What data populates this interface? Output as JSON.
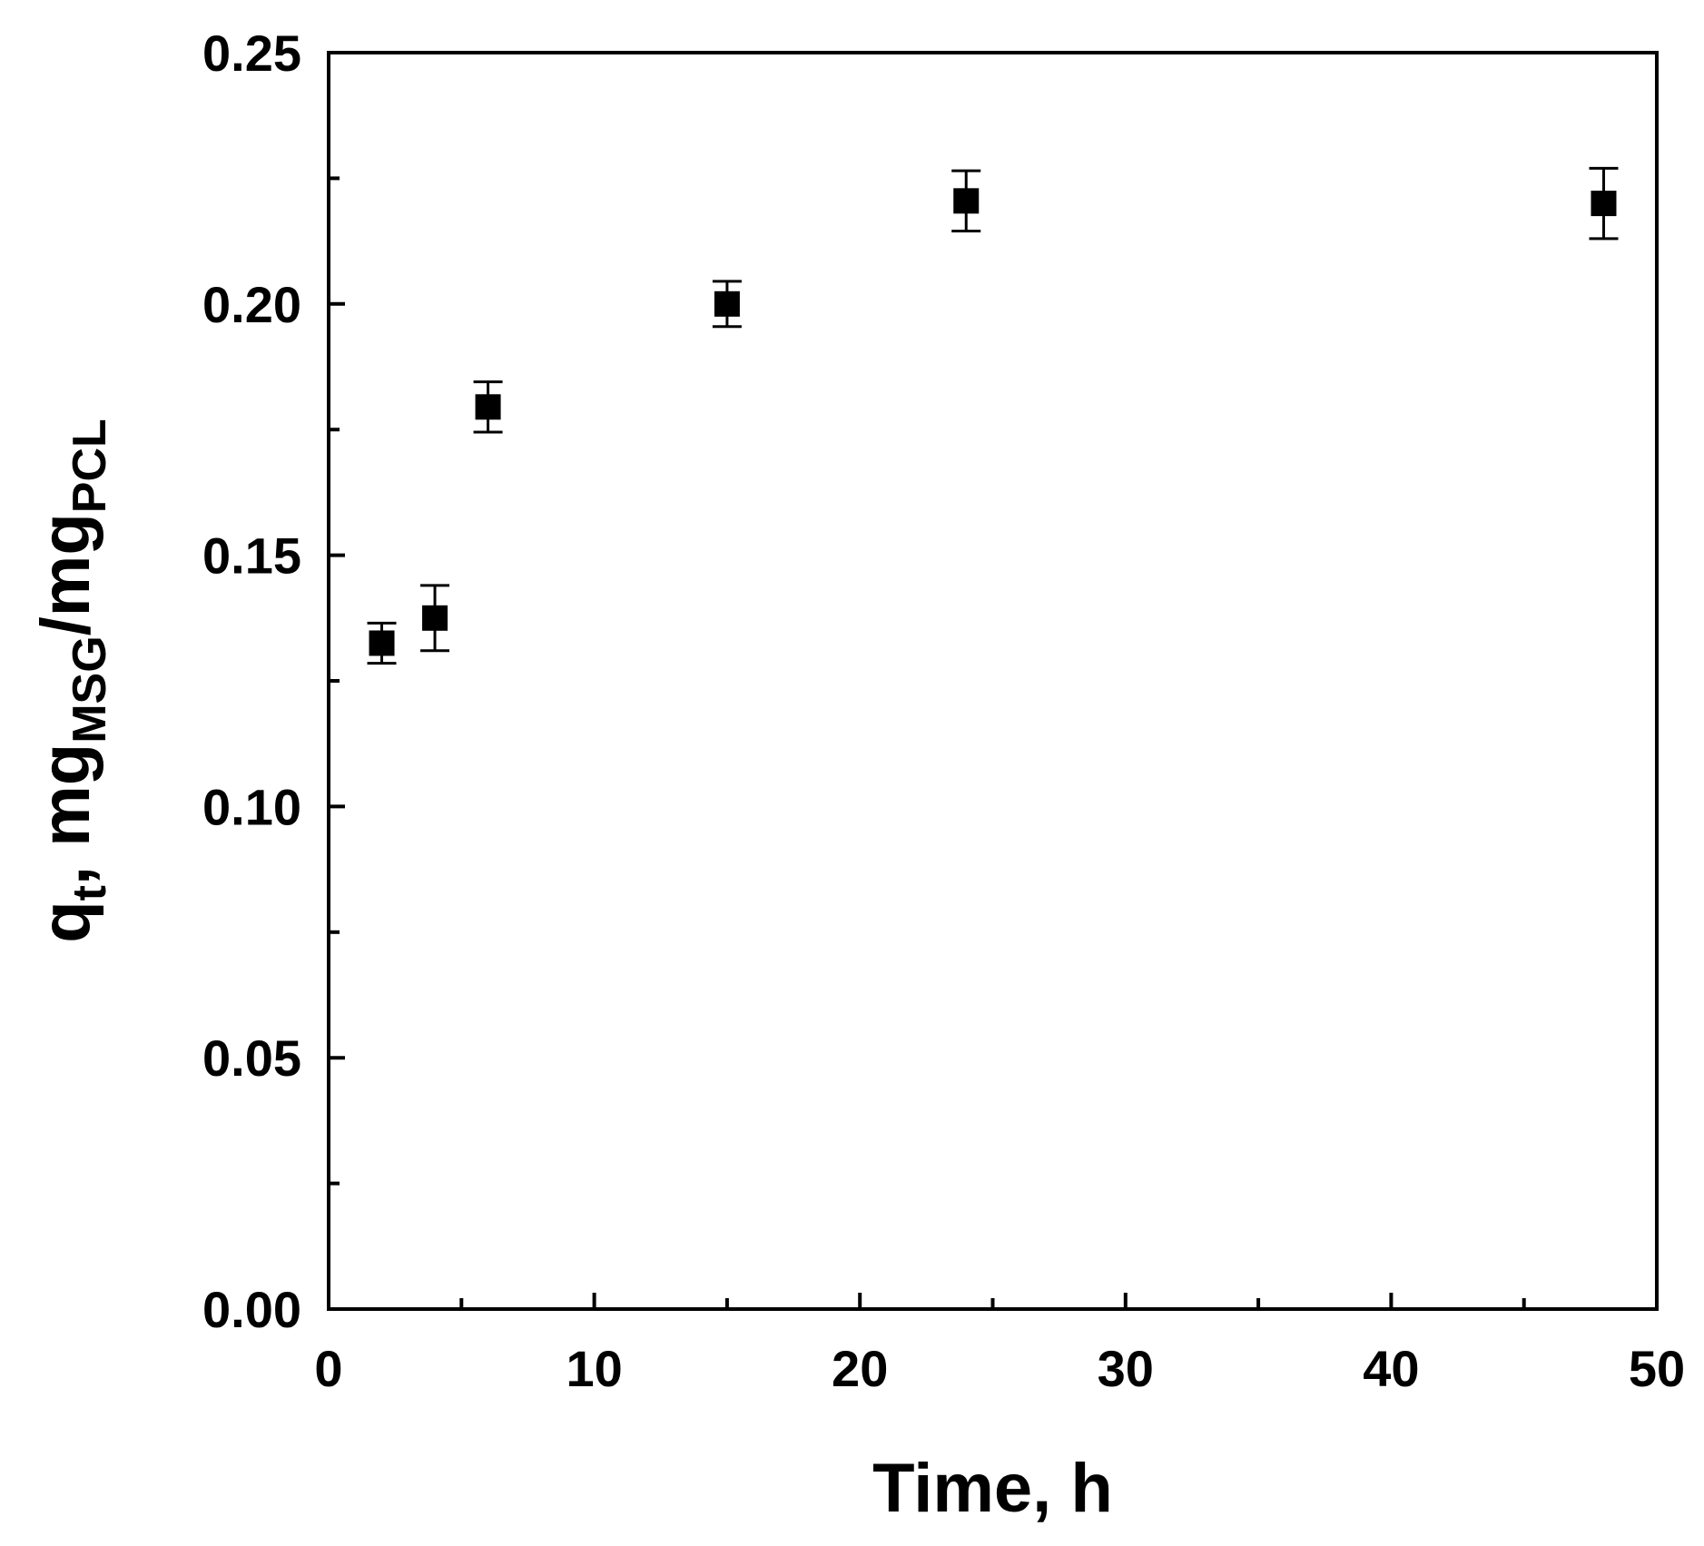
{
  "chart_data": {
    "type": "scatter",
    "xlabel": "Time, h",
    "ylabel": {
      "parts": [
        {
          "text": "q",
          "sub": false
        },
        {
          "text": "t",
          "sub": true
        },
        {
          "text": ", mg",
          "sub": false
        },
        {
          "text": "MSG",
          "sub": true
        },
        {
          "text": "/mg",
          "sub": false
        },
        {
          "text": "PCL",
          "sub": true
        }
      ]
    },
    "xlim": [
      0,
      50
    ],
    "ylim": [
      0,
      0.25
    ],
    "x_ticks": [
      0,
      10,
      20,
      30,
      40,
      50
    ],
    "x_tick_labels": [
      "0",
      "10",
      "20",
      "30",
      "40",
      "50"
    ],
    "x_minor_ticks": [
      5,
      15,
      25,
      35,
      45
    ],
    "y_ticks": [
      0,
      0.05,
      0.1,
      0.15,
      0.2,
      0.25
    ],
    "y_tick_labels": [
      "0.00",
      "0.05",
      "0.10",
      "0.15",
      "0.20",
      "0.25"
    ],
    "y_minor_ticks": [
      0.025,
      0.075,
      0.125,
      0.175,
      0.225
    ],
    "grid": false,
    "legend": "none",
    "series": [
      {
        "marker": "square",
        "color": "#000000",
        "points": [
          {
            "x": 2,
            "y": 0.1325,
            "err": 0.004
          },
          {
            "x": 4,
            "y": 0.1375,
            "err": 0.0065
          },
          {
            "x": 6,
            "y": 0.1795,
            "err": 0.005
          },
          {
            "x": 15,
            "y": 0.2,
            "err": 0.0045
          },
          {
            "x": 24,
            "y": 0.2205,
            "err": 0.006
          },
          {
            "x": 48,
            "y": 0.22,
            "err": 0.007
          }
        ]
      }
    ]
  }
}
